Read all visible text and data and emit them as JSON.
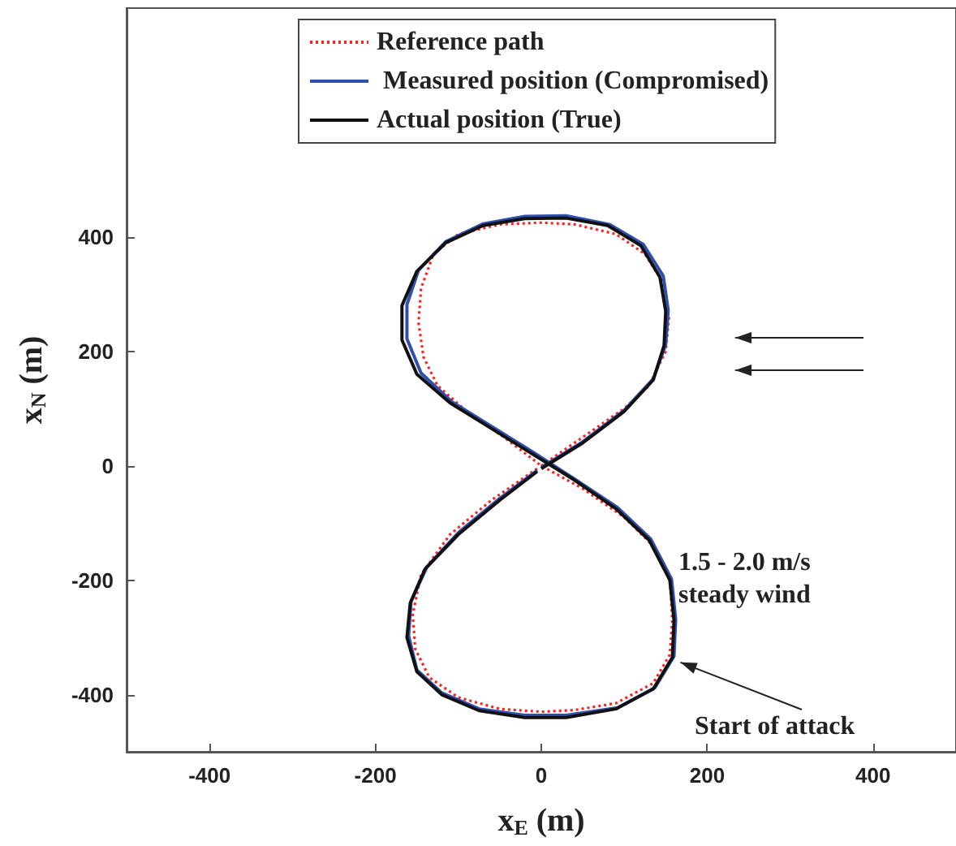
{
  "chart_data": {
    "type": "line",
    "xlabel": "x$_{E}$ (m)",
    "ylabel": "x$_{N}$ (m)",
    "xlim": [
      -500,
      500
    ],
    "ylim": [
      -500,
      800
    ],
    "xticks": [
      -400,
      -200,
      0,
      200,
      400
    ],
    "yticks": [
      -400,
      -200,
      0,
      200,
      400
    ],
    "grid": false,
    "legend": "top right",
    "marker": "none",
    "series": [
      {
        "name": "Reference path",
        "color": "#ff2020",
        "line_style": "dotted",
        "x": [
          0,
          50,
          100,
          130,
          150,
          154,
          147,
          125,
          90,
          40,
          0,
          -50,
          -100,
          -130,
          -145,
          -148,
          -142,
          -125,
          -90,
          -45,
          0,
          50,
          100,
          135,
          155,
          158,
          155,
          135,
          90,
          40,
          0,
          -50,
          -100,
          -135,
          -152,
          -155,
          -145,
          -110,
          -60,
          -5
        ],
        "values": [
          0,
          50,
          100,
          140,
          200,
          260,
          320,
          370,
          405,
          422,
          425,
          422,
          405,
          370,
          310,
          250,
          190,
          140,
          95,
          50,
          0,
          -40,
          -90,
          -140,
          -200,
          -270,
          -330,
          -380,
          -415,
          -427,
          -430,
          -425,
          -405,
          -370,
          -320,
          -260,
          -190,
          -120,
          -60,
          -5
        ]
      },
      {
        "name": " Measured position (Compromised)",
        "color": "#3050b0",
        "line_style": "solid",
        "x": [
          0,
          50,
          100,
          135,
          150,
          153,
          147,
          123,
          82,
          30,
          -20,
          -70,
          -115,
          -148,
          -162,
          -162,
          -145,
          -108,
          -58,
          -8,
          40,
          92,
          132,
          157,
          162,
          160,
          137,
          92,
          30,
          -20,
          -75,
          -120,
          -150,
          -160,
          -157,
          -138,
          -100,
          -50,
          -5
        ],
        "values": [
          -3,
          42,
          97,
          152,
          212,
          272,
          332,
          387,
          422,
          437,
          436,
          423,
          392,
          342,
          282,
          222,
          162,
          112,
          67,
          22,
          -23,
          -73,
          -128,
          -198,
          -268,
          -333,
          -388,
          -423,
          -436,
          -436,
          -425,
          -397,
          -357,
          -297,
          -237,
          -177,
          -117,
          -57,
          -8
        ]
      },
      {
        "name": "Actual position (True)",
        "color": "#111111",
        "line_style": "solid",
        "x": [
          0,
          50,
          100,
          135,
          148,
          150,
          143,
          120,
          80,
          30,
          -20,
          -70,
          -115,
          -150,
          -168,
          -168,
          -150,
          -110,
          -60,
          -10,
          40,
          90,
          130,
          155,
          160,
          158,
          135,
          90,
          30,
          -20,
          -75,
          -120,
          -150,
          -162,
          -158,
          -140,
          -100,
          -50,
          -5
        ],
        "values": [
          -5,
          40,
          95,
          150,
          210,
          270,
          330,
          385,
          420,
          433,
          432,
          420,
          390,
          340,
          280,
          220,
          160,
          110,
          65,
          20,
          -25,
          -75,
          -130,
          -200,
          -270,
          -335,
          -390,
          -425,
          -440,
          -440,
          -428,
          -400,
          -360,
          -300,
          -240,
          -180,
          -120,
          -60,
          -10
        ]
      }
    ],
    "annotations": [
      "1.5 - 2.0 m/s\nsteady wind",
      {
        "text": "Start of attack",
        "x": 160,
        "y": -338
      }
    ]
  }
}
